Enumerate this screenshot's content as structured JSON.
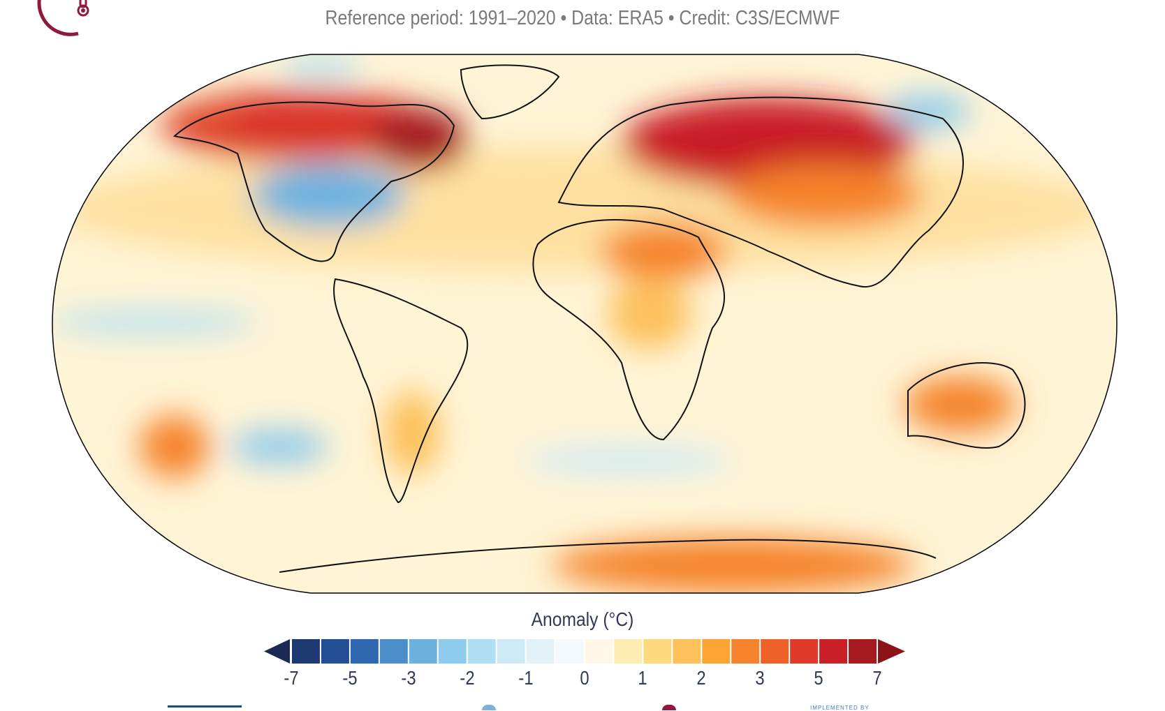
{
  "header": {
    "subtitle": "Reference period: 1991–2020 • Data: ERA5 • Credit: C3S/ECMWF",
    "logo": "thermometer-logo"
  },
  "chart_data": {
    "type": "heatmap",
    "projection": "Robinson world map",
    "description_source": "global surface air temperature anomaly map",
    "colorbar": {
      "title": "Anomaly (°C)",
      "tick_labels": [
        "-7",
        "-5",
        "-3",
        "-2",
        "-1",
        "0",
        "1",
        "2",
        "3",
        "5",
        "7"
      ],
      "extend": "both",
      "colors": [
        "#1f3a73",
        "#224e95",
        "#2f68b0",
        "#4a8fc9",
        "#6cb2e0",
        "#8fcbec",
        "#b0dff4",
        "#cfeaf7",
        "#e3f2f9",
        "#f3f9fc",
        "#fff8e6",
        "#feecb3",
        "#fed97e",
        "#fdc05a",
        "#fca533",
        "#f5832c",
        "#ef6129",
        "#e03b2a",
        "#c91f27",
        "#a61a20"
      ],
      "min_arrow_color": "#1b2a55",
      "max_arrow_color": "#8c1419"
    }
  },
  "footer": {
    "implemented_by": "IMPLEMENTED BY"
  }
}
